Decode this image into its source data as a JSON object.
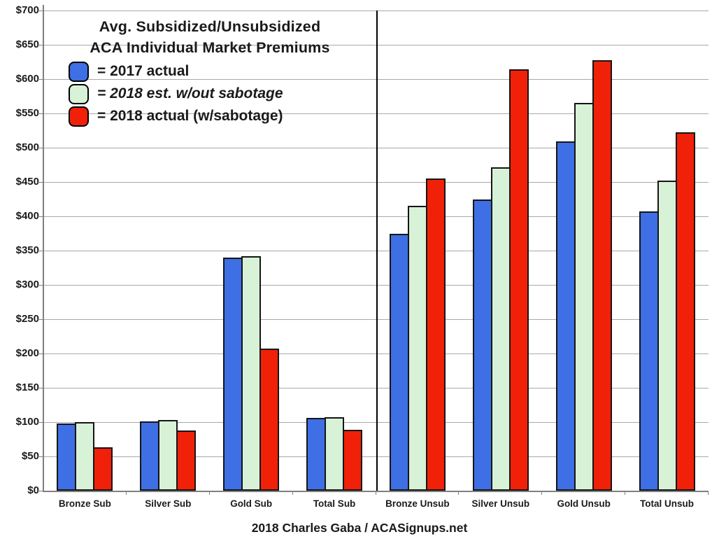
{
  "title": {
    "line1": "Avg. Subsidized/Unsubsidized",
    "line2": "ACA Individual Market Premiums"
  },
  "legend": [
    {
      "label": "= 2017 actual",
      "italic": false,
      "color": "#3E6FE4"
    },
    {
      "label": "= 2018 est. w/out sabotage",
      "italic": true,
      "color": "#D8F2D8"
    },
    {
      "label": "= 2018 actual (w/sabotage)",
      "italic": false,
      "color": "#F02108"
    }
  ],
  "footer": "2018 Charles Gaba / ACASignups.net",
  "colors": {
    "bar_blue": "#3E6FE4",
    "bar_green": "#D8F2D8",
    "bar_red": "#F02108",
    "gridline": "#A9A9A9",
    "axis": "#7F7F7F",
    "divider": "#000000"
  },
  "chart_data": {
    "type": "bar",
    "title": "Avg. Subsidized/Unsubsidized ACA Individual Market Premiums",
    "xlabel": "",
    "ylabel": "",
    "categories": [
      "Bronze Sub",
      "Silver Sub",
      "Gold Sub",
      "Total Sub",
      "Bronze Unsub",
      "Silver Unsub",
      "Gold Unsub",
      "Total Unsub"
    ],
    "series": [
      {
        "name": "2017 actual",
        "color": "#3E6FE4",
        "values": [
          98,
          101,
          340,
          106,
          374,
          424,
          509,
          407
        ]
      },
      {
        "name": "2018 est. w/out sabotage",
        "color": "#D8F2D8",
        "values": [
          100,
          103,
          342,
          107,
          415,
          471,
          565,
          452
        ]
      },
      {
        "name": "2018 actual (w/sabotage)",
        "color": "#F02108",
        "values": [
          63,
          88,
          207,
          89,
          455,
          614,
          628,
          522
        ]
      }
    ],
    "ylim": [
      0,
      700
    ],
    "ytick_step": 50,
    "yticks": [
      "$0",
      "$50",
      "$100",
      "$150",
      "$200",
      "$250",
      "$300",
      "$350",
      "$400",
      "$450",
      "$500",
      "$550",
      "$600",
      "$650",
      "$700"
    ],
    "grid": true,
    "legend_position": "top-left",
    "divider_after_category": "Total Sub",
    "footnote": "2018 Charles Gaba / ACASignups.net"
  }
}
